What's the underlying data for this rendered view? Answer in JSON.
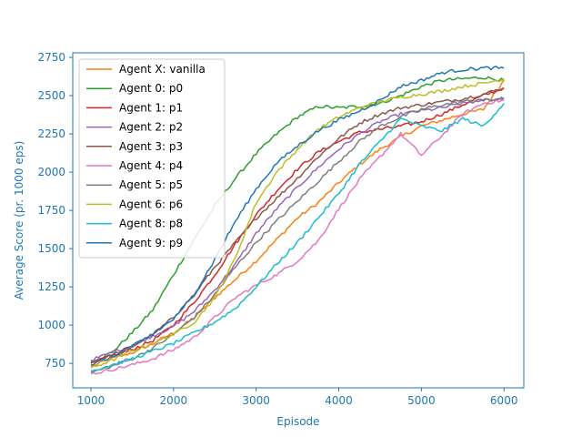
{
  "chart_data": {
    "type": "line",
    "title": "",
    "xlabel": "Episode",
    "ylabel": "Average Score (pr. 1000 eps)",
    "xlim": [
      780,
      6240
    ],
    "ylim": [
      590,
      2780
    ],
    "xticks": [
      1000,
      2000,
      3000,
      4000,
      5000,
      6000
    ],
    "yticks": [
      750,
      1000,
      1250,
      1500,
      1750,
      2000,
      2250,
      2500,
      2750
    ],
    "axis_color": "#1f77b4",
    "grid": false,
    "legend_position": "upper-left",
    "series": [
      {
        "name": "Agent X: vanilla",
        "color": "#ff7f0e",
        "x": [
          1000,
          1250,
          1500,
          1750,
          2000,
          2250,
          2500,
          2750,
          3000,
          3250,
          3500,
          3750,
          4000,
          4250,
          4500,
          4750,
          5000,
          5250,
          5500,
          5750,
          6000
        ],
        "y": [
          730,
          780,
          820,
          880,
          950,
          1050,
          1180,
          1300,
          1420,
          1560,
          1700,
          1800,
          1930,
          2050,
          2150,
          2230,
          2300,
          2340,
          2380,
          2410,
          2600
        ]
      },
      {
        "name": "Agent 0: p0",
        "color": "#2ca02c",
        "x": [
          1000,
          1250,
          1500,
          1750,
          2000,
          2250,
          2500,
          2750,
          3000,
          3250,
          3500,
          3750,
          4000,
          4250,
          4500,
          4750,
          5000,
          5250,
          5500,
          5750,
          6000
        ],
        "y": [
          760,
          820,
          950,
          1100,
          1330,
          1560,
          1780,
          1960,
          2120,
          2250,
          2360,
          2430,
          2420,
          2430,
          2450,
          2500,
          2560,
          2600,
          2610,
          2620,
          2600
        ]
      },
      {
        "name": "Agent 1: p1",
        "color": "#d62728",
        "x": [
          1000,
          1250,
          1500,
          1750,
          2000,
          2250,
          2500,
          2750,
          3000,
          3250,
          3500,
          3750,
          4000,
          4250,
          4500,
          4750,
          5000,
          5250,
          5500,
          5750,
          6000
        ],
        "y": [
          750,
          800,
          840,
          900,
          1000,
          1150,
          1330,
          1530,
          1720,
          1880,
          2020,
          2130,
          2200,
          2260,
          2280,
          2300,
          2330,
          2380,
          2440,
          2500,
          2550
        ]
      },
      {
        "name": "Agent 2: p2",
        "color": "#9467bd",
        "x": [
          1000,
          1250,
          1500,
          1750,
          2000,
          2250,
          2500,
          2750,
          3000,
          3250,
          3500,
          3750,
          4000,
          4250,
          4500,
          4750,
          5000,
          5250,
          5500,
          5750,
          6000
        ],
        "y": [
          770,
          820,
          870,
          930,
          990,
          1090,
          1230,
          1400,
          1600,
          1760,
          1900,
          2030,
          2150,
          2250,
          2330,
          2380,
          2400,
          2420,
          2450,
          2470,
          2480
        ]
      },
      {
        "name": "Agent 3: p3",
        "color": "#8c564b",
        "x": [
          1000,
          1250,
          1500,
          1750,
          2000,
          2250,
          2500,
          2750,
          3000,
          3250,
          3500,
          3750,
          4000,
          4250,
          4500,
          4750,
          5000,
          5250,
          5500,
          5750,
          6000
        ],
        "y": [
          760,
          800,
          860,
          940,
          1050,
          1200,
          1380,
          1540,
          1700,
          1830,
          1960,
          2100,
          2220,
          2320,
          2380,
          2420,
          2440,
          2460,
          2480,
          2510,
          2550
        ]
      },
      {
        "name": "Agent 4: p4",
        "color": "#e377c2",
        "x": [
          1000,
          1250,
          1500,
          1750,
          2000,
          2250,
          2500,
          2750,
          3000,
          3250,
          3500,
          3750,
          4000,
          4250,
          4500,
          4750,
          5000,
          5250,
          5500,
          5750,
          6000
        ],
        "y": [
          680,
          710,
          740,
          780,
          840,
          920,
          1050,
          1180,
          1260,
          1330,
          1420,
          1550,
          1760,
          1950,
          2100,
          2250,
          2110,
          2240,
          2380,
          2450,
          2470
        ]
      },
      {
        "name": "Agent 5: p5",
        "color": "#7f7f7f",
        "x": [
          1000,
          1250,
          1500,
          1750,
          2000,
          2250,
          2500,
          2750,
          3000,
          3250,
          3500,
          3750,
          4000,
          4250,
          4500,
          4750,
          5000,
          5250,
          5500,
          5750,
          6000
        ],
        "y": [
          690,
          730,
          780,
          850,
          940,
          1050,
          1200,
          1380,
          1540,
          1680,
          1810,
          1940,
          2070,
          2200,
          2300,
          2360,
          2410,
          2440,
          2460,
          2470,
          2480
        ]
      },
      {
        "name": "Agent 6: p6",
        "color": "#bcbd22",
        "x": [
          1000,
          1250,
          1500,
          1750,
          2000,
          2250,
          2500,
          2750,
          3000,
          3250,
          3500,
          3750,
          4000,
          4250,
          4500,
          4750,
          5000,
          5250,
          5500,
          5750,
          6000
        ],
        "y": [
          720,
          770,
          830,
          880,
          940,
          1020,
          1180,
          1440,
          1800,
          2000,
          2150,
          2280,
          2360,
          2420,
          2460,
          2490,
          2510,
          2530,
          2560,
          2580,
          2610
        ]
      },
      {
        "name": "Agent 8: p8",
        "color": "#17becf",
        "x": [
          1000,
          1250,
          1500,
          1750,
          2000,
          2250,
          2500,
          2750,
          3000,
          3250,
          3500,
          3750,
          4000,
          4250,
          4500,
          4750,
          5000,
          5250,
          5500,
          5750,
          6000
        ],
        "y": [
          700,
          740,
          780,
          830,
          880,
          950,
          1020,
          1110,
          1250,
          1400,
          1540,
          1700,
          1860,
          2050,
          2200,
          2350,
          2300,
          2270,
          2350,
          2300,
          2450
        ]
      },
      {
        "name": "Agent 9: p9",
        "color": "#1f77b4",
        "x": [
          1000,
          1250,
          1500,
          1750,
          2000,
          2250,
          2500,
          2750,
          3000,
          3250,
          3500,
          3750,
          4000,
          4250,
          4500,
          4750,
          5000,
          5250,
          5500,
          5750,
          6000
        ],
        "y": [
          740,
          790,
          860,
          940,
          1040,
          1200,
          1430,
          1680,
          1890,
          2060,
          2170,
          2270,
          2340,
          2400,
          2470,
          2560,
          2600,
          2650,
          2670,
          2680,
          2680
        ]
      }
    ]
  }
}
